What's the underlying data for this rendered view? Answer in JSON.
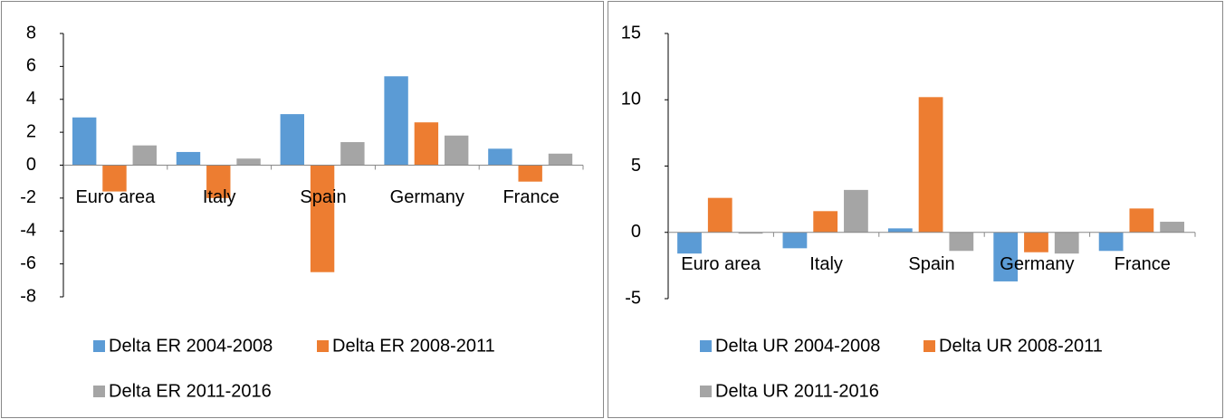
{
  "chart_data": [
    {
      "type": "bar",
      "categories": [
        "Euro area",
        "Italy",
        "Spain",
        "Germany",
        "France"
      ],
      "series": [
        {
          "name": "Delta ER 2004-2008",
          "color": "#5b9bd5",
          "values": [
            2.9,
            0.8,
            3.1,
            5.4,
            1.0
          ]
        },
        {
          "name": "Delta ER 2008-2011",
          "color": "#ed7d31",
          "values": [
            -1.6,
            -2.0,
            -6.5,
            2.6,
            -1.0
          ]
        },
        {
          "name": "Delta ER 2011-2016",
          "color": "#a5a5a5",
          "values": [
            1.2,
            0.4,
            1.4,
            1.8,
            0.7
          ]
        }
      ],
      "ylim": [
        -8,
        8
      ],
      "yticks": [
        -8,
        -6,
        -4,
        -2,
        0,
        2,
        4,
        6,
        8
      ],
      "grid": false
    },
    {
      "type": "bar",
      "categories": [
        "Euro area",
        "Italy",
        "Spain",
        "Germany",
        "France"
      ],
      "series": [
        {
          "name": "Delta UR 2004-2008",
          "color": "#5b9bd5",
          "values": [
            -1.6,
            -1.2,
            0.3,
            -3.7,
            -1.4
          ]
        },
        {
          "name": "Delta UR 2008-2011",
          "color": "#ed7d31",
          "values": [
            2.6,
            1.6,
            10.2,
            -1.5,
            1.8
          ]
        },
        {
          "name": "Delta UR 2011-2016",
          "color": "#a5a5a5",
          "values": [
            -0.1,
            3.2,
            -1.4,
            -1.6,
            0.8
          ]
        }
      ],
      "ylim": [
        -5,
        15
      ],
      "yticks": [
        -5,
        0,
        5,
        10,
        15
      ],
      "grid": false
    }
  ]
}
